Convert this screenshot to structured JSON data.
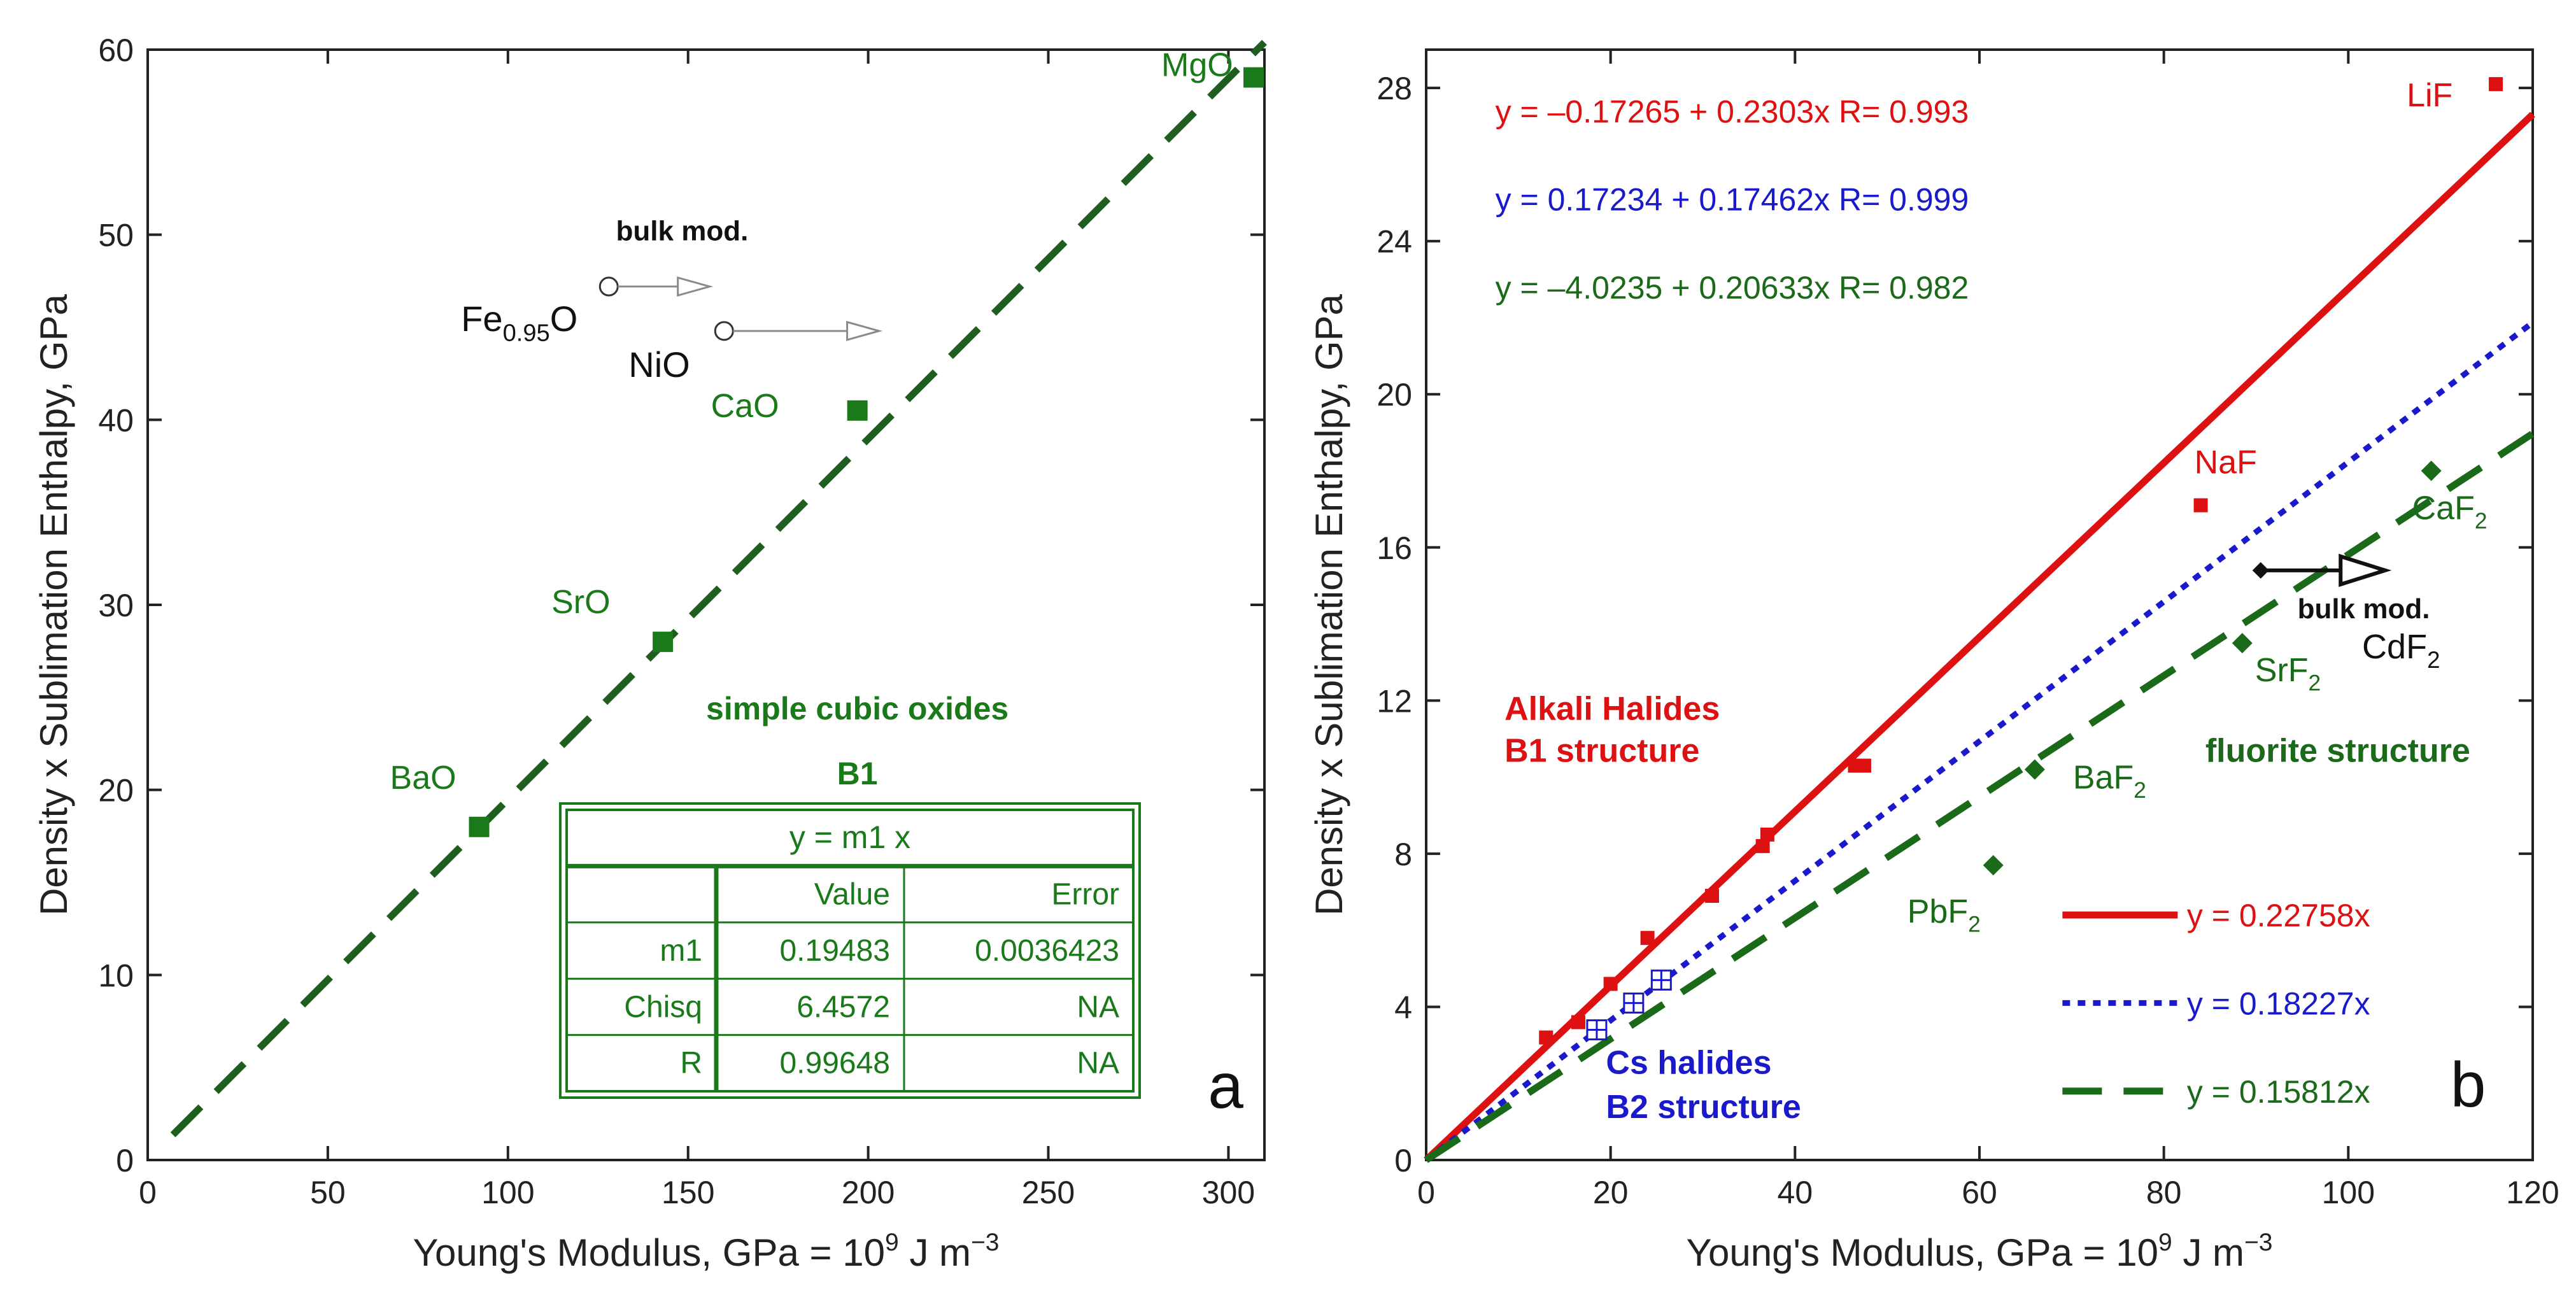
{
  "chart_data": [
    {
      "type": "scatter",
      "panel": "a",
      "xlabel": "Young's Modulus, GPa = 10",
      "xlabel_sup": "9",
      "xlabel_unit": " J m",
      "xlabel_unit_sup": "−3",
      "ylabel": "Density x Sublimation Enthalpy, GPa",
      "xlim": [
        0,
        310
      ],
      "ylim": [
        0,
        60
      ],
      "xticks": [
        0,
        50,
        100,
        150,
        200,
        250,
        300
      ],
      "yticks": [
        0,
        10,
        20,
        30,
        40,
        50,
        60
      ],
      "colors": {
        "series": "#1a7a1a",
        "fit": "#1f5e1f",
        "black": "#000000",
        "arrow": "#8a8a8a"
      },
      "series": [
        {
          "name": "simple cubic oxides",
          "marker": "square",
          "points": [
            {
              "label": "BaO",
              "x": 92,
              "y": 18
            },
            {
              "label": "SrO",
              "x": 143,
              "y": 28
            },
            {
              "label": "CaO",
              "x": 197,
              "y": 40.5
            },
            {
              "label": "MgO",
              "x": 307,
              "y": 58.5
            }
          ]
        }
      ],
      "fit": {
        "slope": 0.19483,
        "x0": 7,
        "x1": 310,
        "style": "dashed"
      },
      "open_points": [
        {
          "label": "Fe",
          "sub": "0.95",
          "suffix": "O",
          "x": 128,
          "y": 47.2,
          "arrow_to": 156
        },
        {
          "label": "NiO",
          "x": 160,
          "y": 44.8,
          "arrow_to": 203
        }
      ],
      "arrow_label": "bulk mod.",
      "group_title": "simple cubic oxides",
      "group_subtitle": "B1",
      "panel_letter": "a",
      "fit_table": {
        "title": "y = m1 x",
        "columns": [
          "",
          "Value",
          "Error"
        ],
        "rows": [
          [
            "m1",
            "0.19483",
            "0.0036423"
          ],
          [
            "Chisq",
            "6.4572",
            "NA"
          ],
          [
            "R",
            "0.99648",
            "NA"
          ]
        ]
      }
    },
    {
      "type": "scatter",
      "panel": "b",
      "xlabel": "Young's Modulus, GPa = 10",
      "xlabel_sup": "9",
      "xlabel_unit": " J m",
      "xlabel_unit_sup": "−3",
      "ylabel": "Density x Sublimation Enthalpy, GPa",
      "xlim": [
        0,
        120
      ],
      "ylim": [
        0,
        29
      ],
      "xticks": [
        0,
        20,
        40,
        60,
        80,
        100,
        120
      ],
      "yticks": [
        0,
        4,
        8,
        12,
        16,
        20,
        24,
        28
      ],
      "colors": {
        "alkali": "#dd1111",
        "cs": "#1a1acc",
        "fluorite": "#1a6a1a",
        "black": "#000000"
      },
      "series": [
        {
          "name": "Alkali Halides",
          "subtitle": "B1 structure",
          "color": "#dd1111",
          "marker": "square",
          "points": [
            {
              "x": 13,
              "y": 3.2
            },
            {
              "x": 16.5,
              "y": 3.6
            },
            {
              "x": 20,
              "y": 4.6
            },
            {
              "x": 24,
              "y": 5.8
            },
            {
              "x": 31,
              "y": 6.9
            },
            {
              "x": 36.5,
              "y": 8.2
            },
            {
              "x": 37,
              "y": 8.5
            },
            {
              "x": 46.5,
              "y": 10.3
            },
            {
              "x": 47.5,
              "y": 10.3
            },
            {
              "x": 84,
              "y": 17.1,
              "label": "NaF"
            },
            {
              "x": 116,
              "y": 28.1,
              "label": "LiF"
            }
          ]
        },
        {
          "name": "Cs halides",
          "subtitle": "B2 structure",
          "color": "#1a1acc",
          "marker": "open-square-cross",
          "points": [
            {
              "x": 18.5,
              "y": 3.4
            },
            {
              "x": 22.5,
              "y": 4.1
            },
            {
              "x": 25.5,
              "y": 4.7
            }
          ]
        },
        {
          "name": "fluorite structure",
          "color": "#1a6a1a",
          "marker": "diamond",
          "points": [
            {
              "x": 61.5,
              "y": 7.7,
              "label": "PbF",
              "sub": "2"
            },
            {
              "x": 66,
              "y": 10.2,
              "label": "BaF",
              "sub": "2"
            },
            {
              "x": 88.5,
              "y": 13.5,
              "label": "SrF",
              "sub": "2"
            },
            {
              "x": 109,
              "y": 18,
              "label": "CaF",
              "sub": "2"
            }
          ]
        }
      ],
      "fits": [
        {
          "slope": 0.22758,
          "color": "#dd1111",
          "style": "solid",
          "legend": "y = 0.22758x"
        },
        {
          "slope": 0.18227,
          "color": "#1a1acc",
          "style": "dotted",
          "legend": "y = 0.18227x"
        },
        {
          "slope": 0.15812,
          "color": "#1a6a1a",
          "style": "dashed",
          "legend": "y = 0.15812x"
        }
      ],
      "equations": [
        {
          "text": "y = –0.17265 + 0.2303x   R= 0.993",
          "color": "#dd1111"
        },
        {
          "text": "y = 0.17234 + 0.17462x   R= 0.999",
          "color": "#1a1acc"
        },
        {
          "text": "y = –4.0235 + 0.20633x   R= 0.982",
          "color": "#1a6a1a"
        }
      ],
      "cdf2": {
        "label": "CdF",
        "sub": "2",
        "x": 90.5,
        "y": 15.4,
        "arrow_to": 104,
        "arrow_label": "bulk mod."
      },
      "panel_letter": "b"
    }
  ]
}
